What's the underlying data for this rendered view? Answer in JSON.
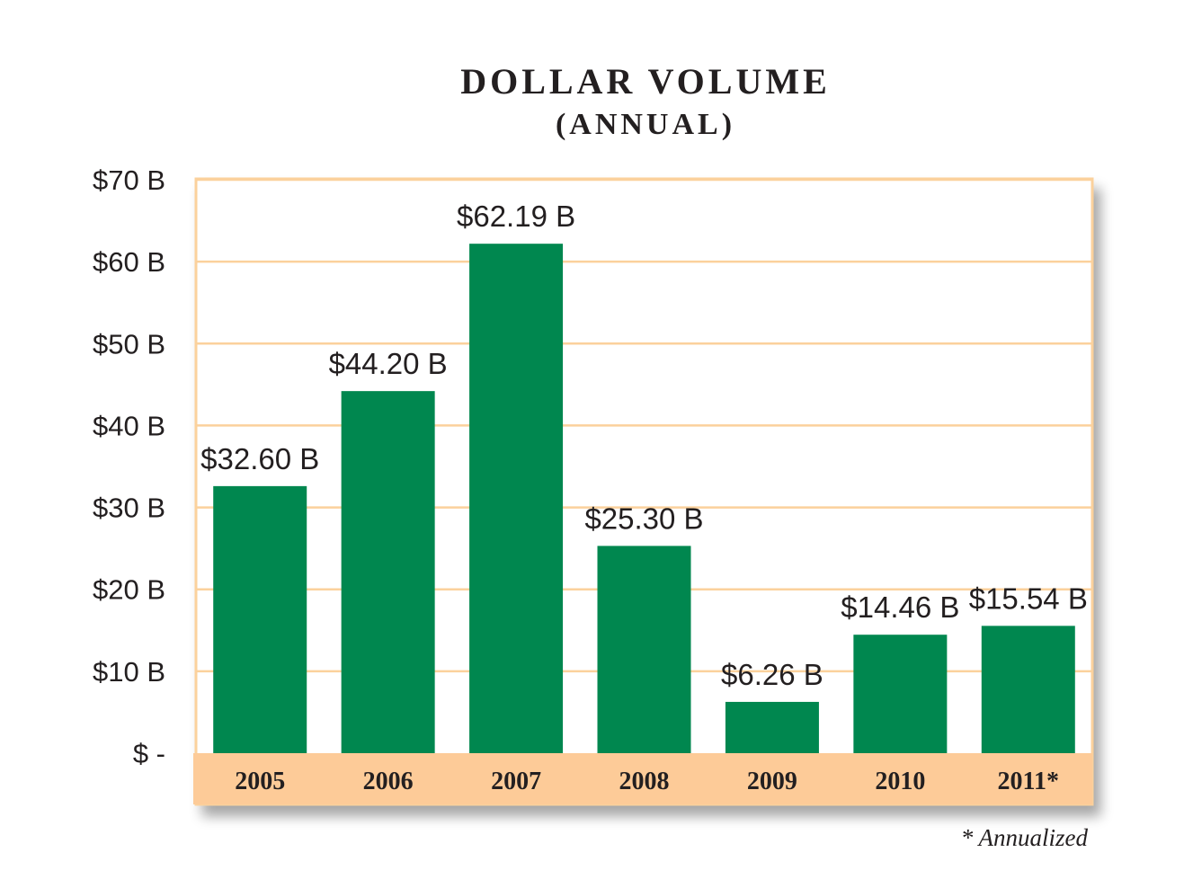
{
  "chart_data": {
    "type": "bar",
    "title": "DOLLAR VOLUME",
    "subtitle": "(ANNUAL)",
    "categories": [
      "2005",
      "2006",
      "2007",
      "2008",
      "2009",
      "2010",
      "2011*"
    ],
    "values": [
      32.6,
      44.2,
      62.19,
      25.3,
      6.26,
      14.46,
      15.54
    ],
    "data_labels": [
      "$32.60 B",
      "$44.20 B",
      "$62.19 B",
      "$25.30 B",
      "$6.26 B",
      "$14.46 B",
      "$15.54 B"
    ],
    "yticks": [
      0,
      10,
      20,
      30,
      40,
      50,
      60,
      70
    ],
    "ytick_labels": [
      "$ -",
      "$10 B",
      "$20 B",
      "$30 B",
      "$40 B",
      "$50 B",
      "$60 B",
      "$70 B"
    ],
    "ylim": [
      0,
      70
    ],
    "xlabel": "",
    "ylabel": "",
    "grid": true,
    "footnote": "* Annualized",
    "colors": {
      "bar": "#00874f",
      "grid": "#fbd19c",
      "band": "#fdcb98",
      "frame": "#fbd19c"
    }
  }
}
